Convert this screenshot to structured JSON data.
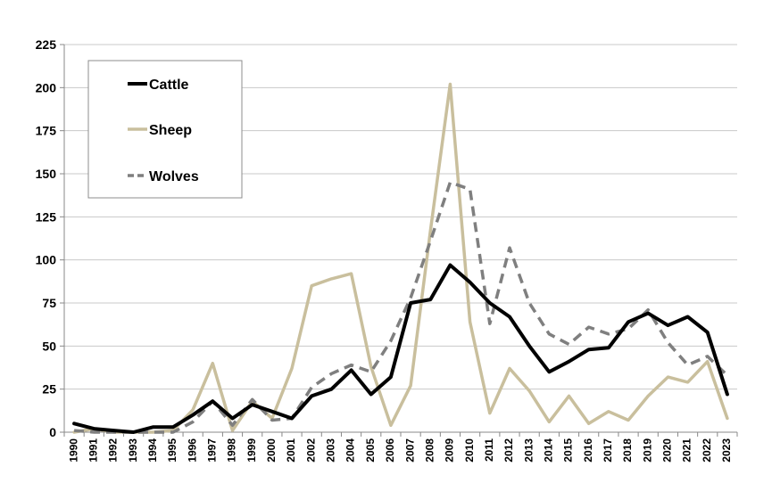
{
  "chart_data": {
    "type": "line",
    "title": "",
    "xlabel": "",
    "ylabel": "",
    "ylim": [
      0,
      225
    ],
    "yticks": [
      "0",
      "25",
      "50",
      "75",
      "100",
      "125",
      "150",
      "175",
      "200",
      "225"
    ],
    "grid": "horizontal",
    "legend_position": "top-left",
    "categories": [
      "1990",
      "1991",
      "1992",
      "1993",
      "1994",
      "1995",
      "1996",
      "1997",
      "1998",
      "1999",
      "2000",
      "2001",
      "2002",
      "2003",
      "2004",
      "2005",
      "2006",
      "2007",
      "2008",
      "2009",
      "2010",
      "2011",
      "2012",
      "2013",
      "2014",
      "2015",
      "2016",
      "2017",
      "2018",
      "2019",
      "2020",
      "2021",
      "2022",
      "2023"
    ],
    "series": [
      {
        "name": "Cattle",
        "color": "#000000",
        "style": "solid",
        "values": [
          5,
          2,
          1,
          0,
          3,
          3,
          10,
          18,
          8,
          16,
          12,
          8,
          21,
          25,
          36,
          22,
          32,
          75,
          77,
          97,
          87,
          75,
          67,
          50,
          35,
          41,
          48,
          49,
          64,
          69,
          62,
          67,
          58,
          22
        ]
      },
      {
        "name": "Sheep",
        "color": "#c9bf9d",
        "style": "solid",
        "values": [
          0,
          2,
          0,
          0,
          0,
          1,
          13,
          40,
          1,
          18,
          8,
          37,
          85,
          89,
          92,
          38,
          4,
          27,
          117,
          202,
          64,
          11,
          37,
          24,
          6,
          21,
          5,
          12,
          7,
          21,
          32,
          29,
          41,
          8
        ]
      },
      {
        "name": "Wolves",
        "color": "#7f7f7f",
        "style": "dashed",
        "values": [
          1,
          0,
          0,
          0,
          0,
          0,
          6,
          18,
          4,
          19,
          7,
          8,
          26,
          34,
          39,
          35,
          53,
          78,
          111,
          145,
          141,
          63,
          107,
          75,
          57,
          51,
          61,
          57,
          60,
          71,
          52,
          39,
          44,
          33
        ]
      }
    ]
  }
}
